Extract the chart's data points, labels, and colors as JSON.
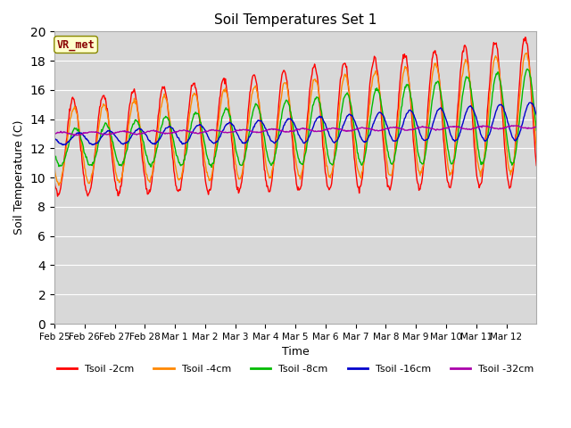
{
  "title": "Soil Temperatures Set 1",
  "xlabel": "Time",
  "ylabel": "Soil Temperature (C)",
  "ylim": [
    0,
    20
  ],
  "yticks": [
    0,
    2,
    4,
    6,
    8,
    10,
    12,
    14,
    16,
    18,
    20
  ],
  "bg_color": "#d8d8d8",
  "fig_bg": "#ffffff",
  "grid_color": "#ffffff",
  "annotation_text": "VR_met",
  "annotation_bg": "#ffffcc",
  "annotation_border": "#888800",
  "annotation_text_color": "#880000",
  "series_colors": [
    "#ff0000",
    "#ff8800",
    "#00bb00",
    "#0000cc",
    "#aa00aa"
  ],
  "series_labels": [
    "Tsoil -2cm",
    "Tsoil -4cm",
    "Tsoil -8cm",
    "Tsoil -16cm",
    "Tsoil -32cm"
  ],
  "n_days": 16,
  "n_per_day": 48
}
